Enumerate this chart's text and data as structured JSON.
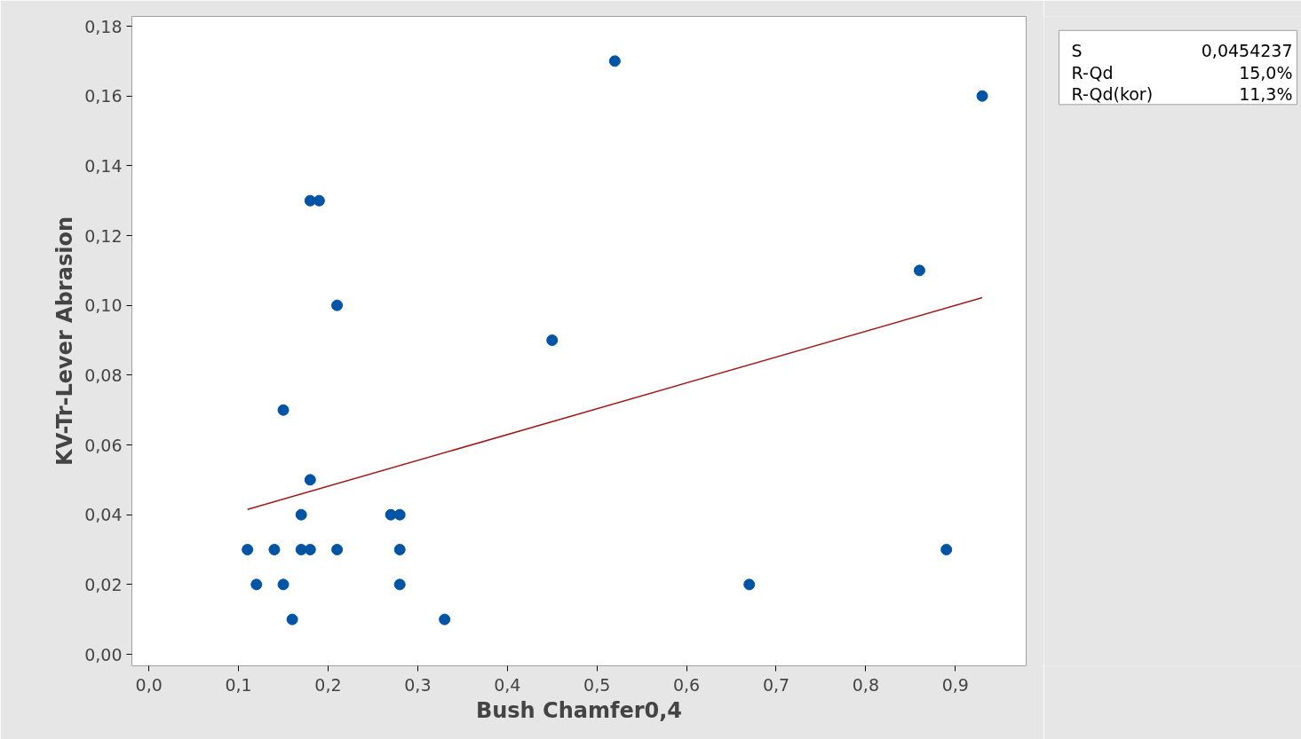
{
  "chart_data": {
    "type": "scatter",
    "xlabel": "Bush Chamfer0,4",
    "ylabel": "KV-Tr-Lever Abrasion",
    "x": [
      0.11,
      0.12,
      0.14,
      0.15,
      0.15,
      0.16,
      0.17,
      0.17,
      0.18,
      0.19,
      0.18,
      0.18,
      0.21,
      0.21,
      0.27,
      0.28,
      0.28,
      0.28,
      0.33,
      0.45,
      0.52,
      0.67,
      0.86,
      0.89,
      0.93
    ],
    "series": [
      {
        "color": "#0054a6",
        "marker": "circle",
        "values": [
          0.03,
          0.02,
          0.03,
          0.07,
          0.02,
          0.01,
          0.04,
          0.03,
          0.13,
          0.13,
          0.05,
          0.03,
          0.1,
          0.03,
          0.04,
          0.04,
          0.03,
          0.02,
          0.01,
          0.09,
          0.17,
          0.02,
          0.11,
          0.03,
          0.16
        ]
      },
      {
        "type": "line",
        "color": "#a01818",
        "x": [
          0.11,
          0.93
        ],
        "values": [
          0.0415,
          0.1022
        ]
      }
    ],
    "xlim": [
      -0.019,
      0.979
    ],
    "ylim": [
      -0.0033,
      0.1828
    ],
    "xticks": [
      {
        "value": 0.0,
        "label": "0,0"
      },
      {
        "value": 0.1,
        "label": "0,1"
      },
      {
        "value": 0.2,
        "label": "0,2"
      },
      {
        "value": 0.3,
        "label": "0,3"
      },
      {
        "value": 0.4,
        "label": "0,4"
      },
      {
        "value": 0.5,
        "label": "0,5"
      },
      {
        "value": 0.6,
        "label": "0,6"
      },
      {
        "value": 0.7,
        "label": "0,7"
      },
      {
        "value": 0.8,
        "label": "0,8"
      },
      {
        "value": 0.9,
        "label": "0,9"
      }
    ],
    "yticks": [
      {
        "value": 0.0,
        "label": "0,00"
      },
      {
        "value": 0.02,
        "label": "0,02"
      },
      {
        "value": 0.04,
        "label": "0,04"
      },
      {
        "value": 0.06,
        "label": "0,06"
      },
      {
        "value": 0.08,
        "label": "0,08"
      },
      {
        "value": 0.1,
        "label": "0,10"
      },
      {
        "value": 0.12,
        "label": "0,12"
      },
      {
        "value": 0.14,
        "label": "0,14"
      },
      {
        "value": 0.16,
        "label": "0,16"
      },
      {
        "value": 0.18,
        "label": "0,18"
      }
    ],
    "annotations": [
      "S",
      "0,0454237",
      "R-Qd",
      "15,0%",
      "R-Qd(kor)",
      "11,3%"
    ],
    "grid": false,
    "line_style": "solid"
  }
}
